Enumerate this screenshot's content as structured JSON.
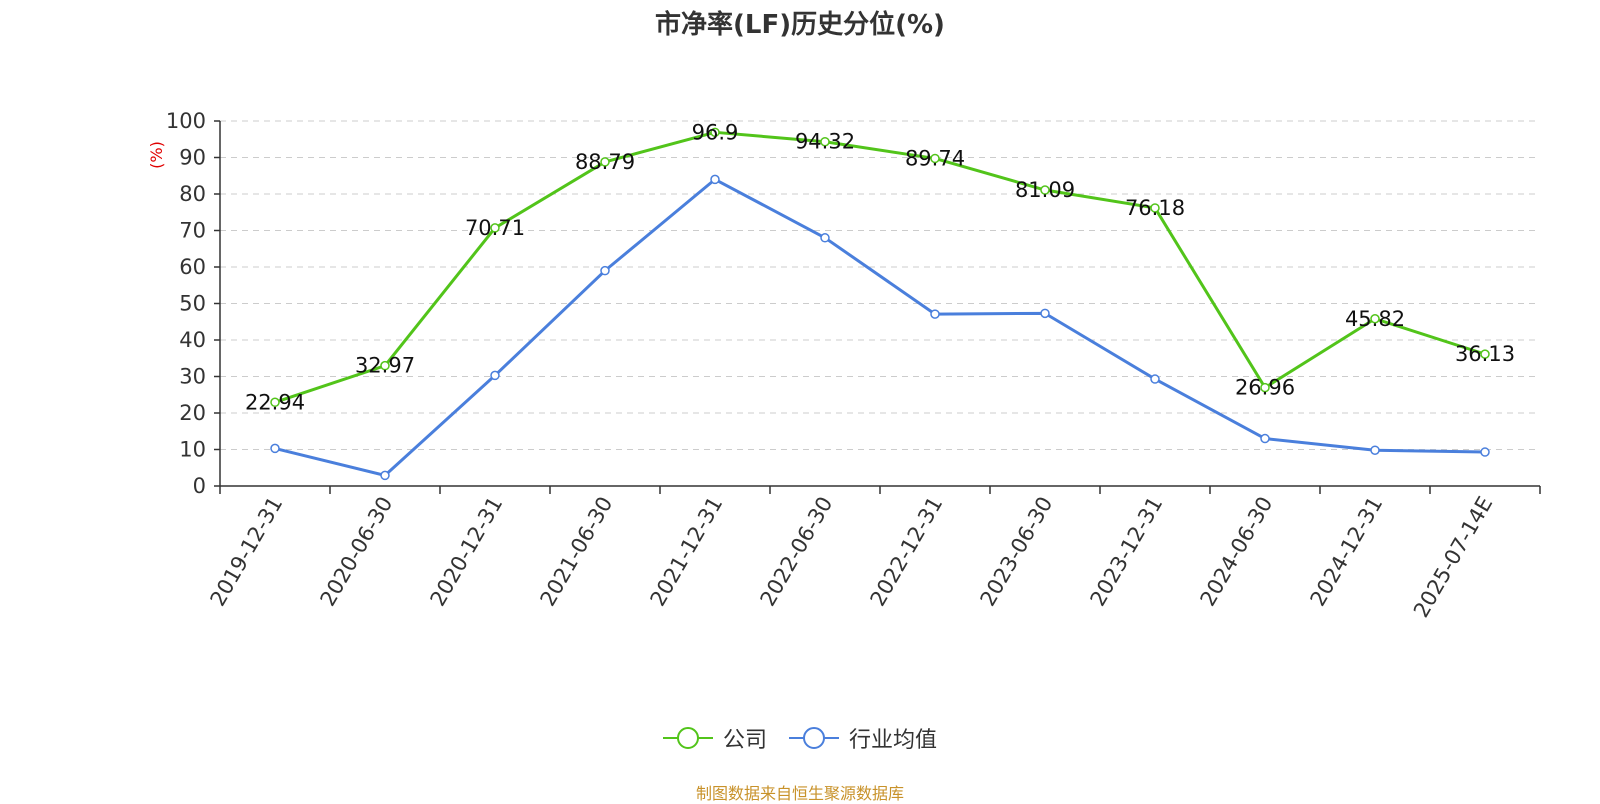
{
  "title": "市净率(LF)历史分位(%)",
  "source": "制图数据来自恒生聚源数据库",
  "legend": [
    {
      "label": "公司",
      "color": "#52c41a"
    },
    {
      "label": "行业均值",
      "color": "#4a7fdc"
    }
  ],
  "chart_data": {
    "type": "line",
    "title": "市净率(LF)历史分位(%)",
    "ylabel": "(%)",
    "ylabel_color": "#e00000",
    "ylim": [
      0,
      100
    ],
    "yticks": [
      0,
      10,
      20,
      30,
      40,
      50,
      60,
      70,
      80,
      90,
      100
    ],
    "grid": true,
    "legend_position": "bottom",
    "categories": [
      "2019-12-31",
      "2020-06-30",
      "2020-12-31",
      "2021-06-30",
      "2021-12-31",
      "2022-06-30",
      "2022-12-31",
      "2023-06-30",
      "2023-12-31",
      "2024-06-30",
      "2024-12-31",
      "2025-07-14E"
    ],
    "series": [
      {
        "name": "公司",
        "color": "#52c41a",
        "labels": true,
        "values": [
          22.94,
          32.97,
          70.71,
          88.79,
          96.9,
          94.32,
          89.74,
          81.09,
          76.18,
          26.96,
          45.82,
          36.13
        ]
      },
      {
        "name": "行业均值",
        "color": "#4a7fdc",
        "labels": false,
        "values": [
          10.3,
          2.9,
          30.3,
          59.0,
          84.0,
          68.0,
          47.1,
          47.3,
          29.3,
          13.0,
          9.8,
          9.3
        ]
      }
    ]
  }
}
